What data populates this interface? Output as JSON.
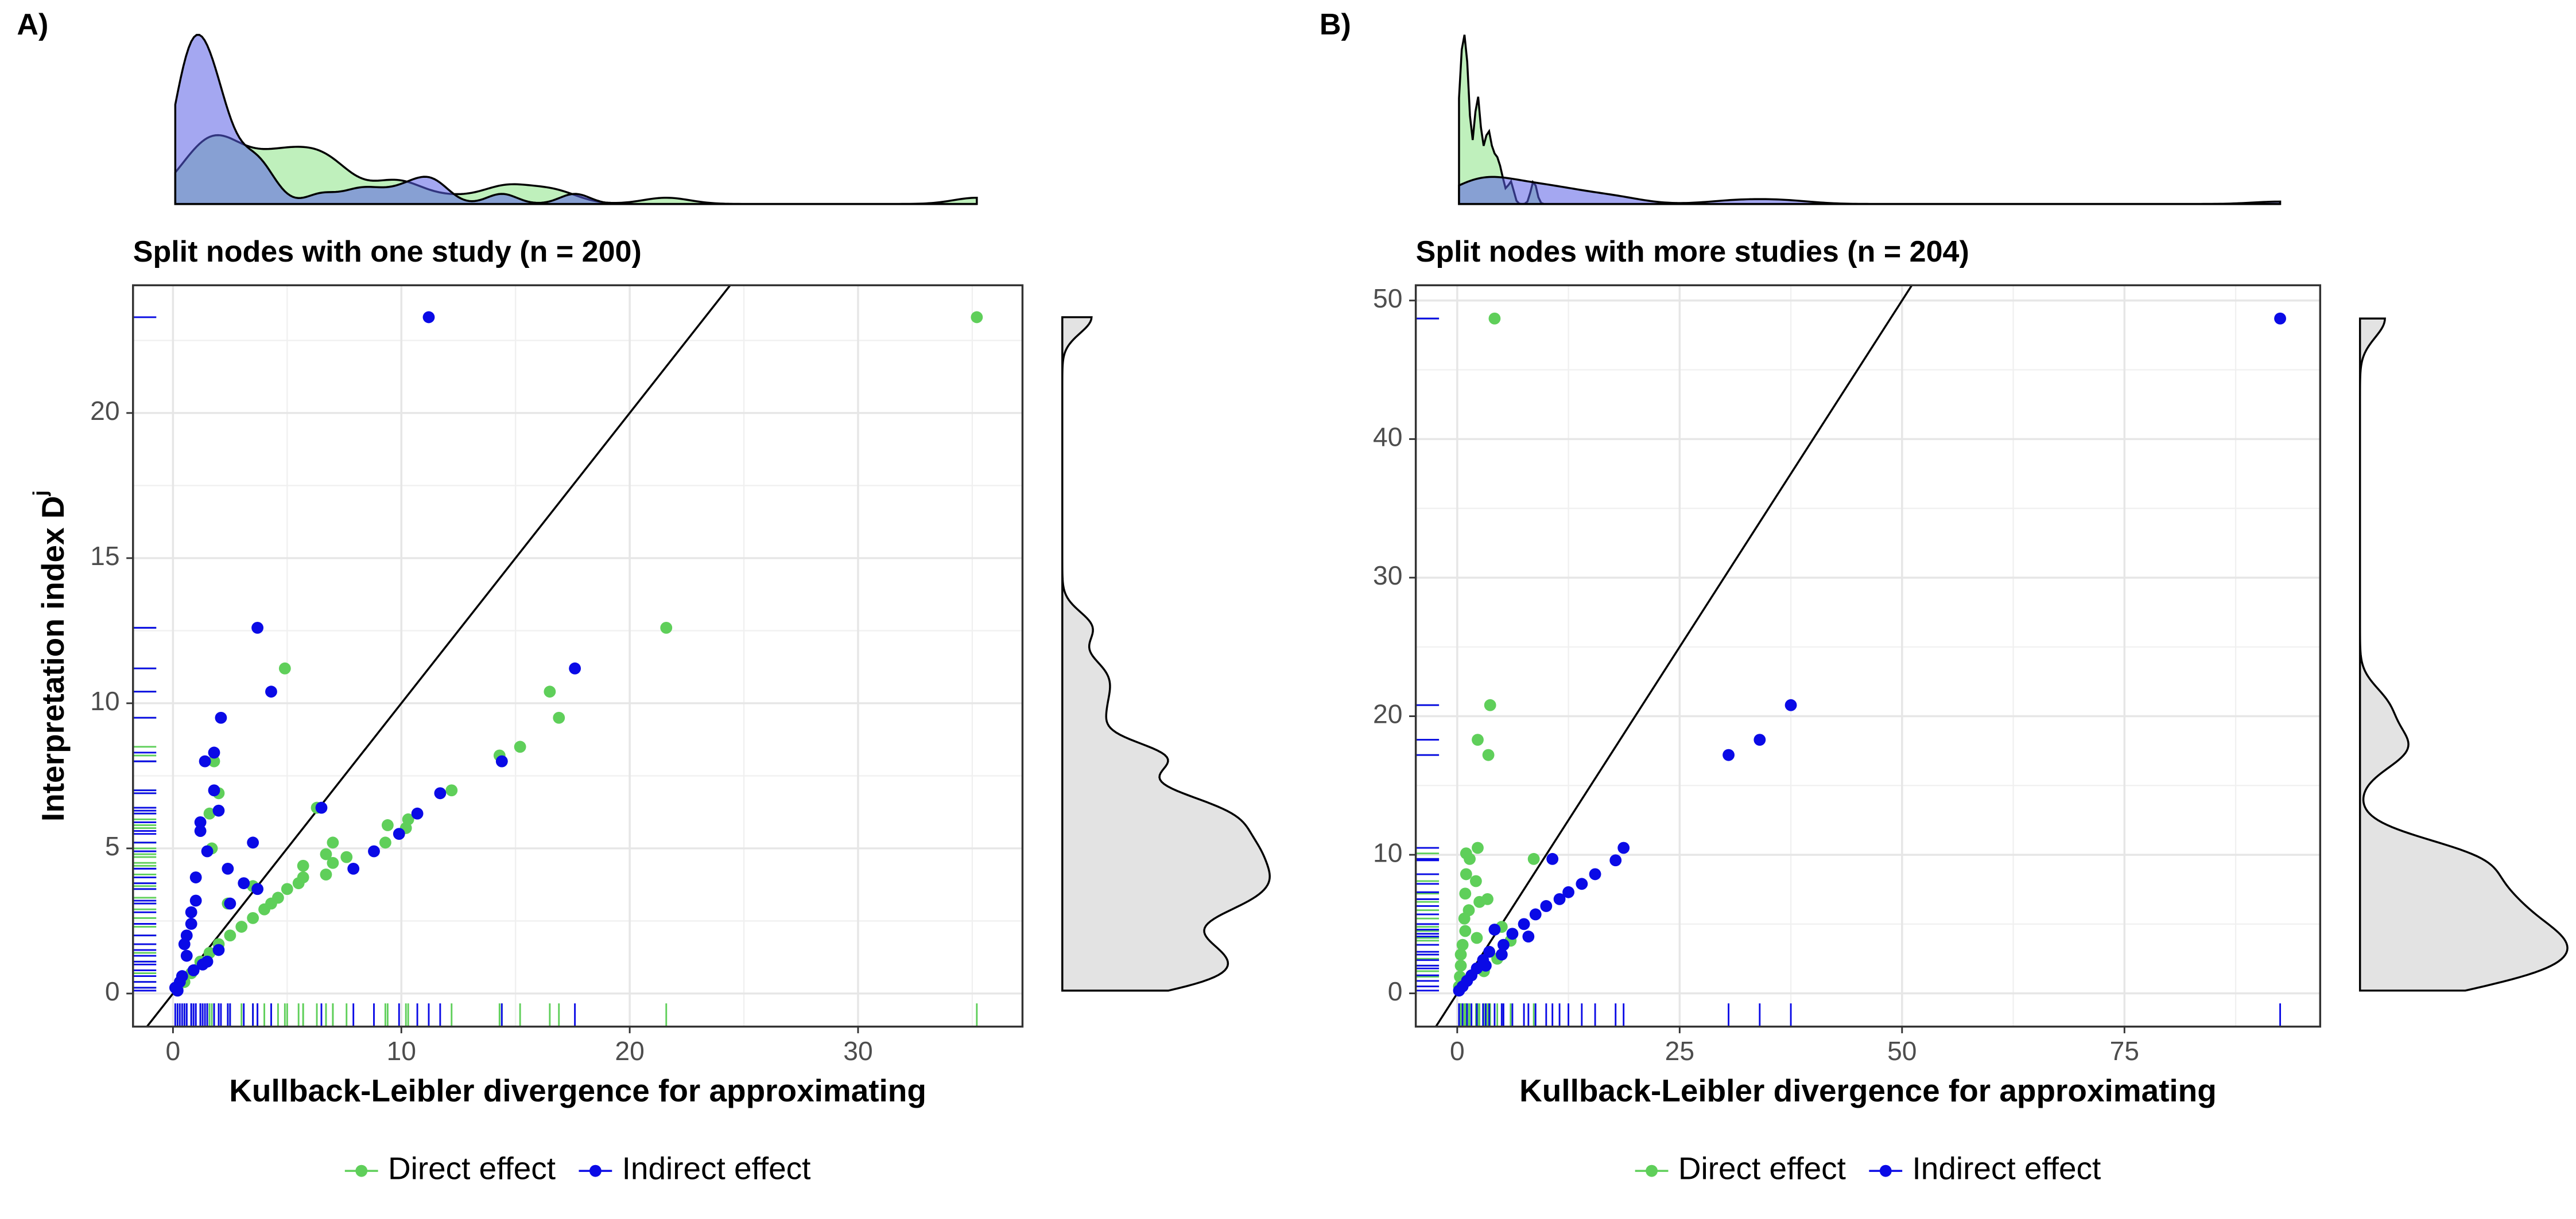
{
  "chart_data": [
    {
      "type": "scatter",
      "panel_label": "A)",
      "title": "Split nodes with one study (n = 200)",
      "x_label": "Kullback-Leibler divergence for approximating",
      "y_label": "Interpretation index D",
      "y_label_sup": "j",
      "xlim": [
        -1.75,
        37.2
      ],
      "ylim": [
        -1.14,
        24.4
      ],
      "xticks": [
        0,
        10,
        20,
        30
      ],
      "yticks": [
        0,
        5,
        10,
        15,
        20
      ],
      "grid": true,
      "legend": "bottom",
      "identity_line": true,
      "marginal_density": true,
      "rug": true,
      "series": [
        {
          "name": "Direct effect",
          "color": "#5fcf5a",
          "x": [
            35.2,
            21.6,
            4.9,
            16.5,
            16.9,
            15.2,
            14.3,
            14.4,
            12.2,
            6.3,
            10.3,
            10.2,
            9.4,
            9.3,
            7.0,
            7.6,
            7.0,
            6.7,
            5.7,
            5.5,
            5.0,
            4.6,
            4.3,
            4.0,
            3.5,
            3.0,
            2.5,
            2.0,
            1.6,
            1.2,
            0.8,
            0.5,
            0.2,
            1.8,
            1.6,
            2.0,
            1.7,
            2.4,
            3.5,
            5.7,
            6.7
          ],
          "y": [
            23.3,
            12.6,
            11.2,
            10.4,
            9.5,
            8.5,
            8.2,
            8.0,
            7.0,
            6.4,
            6.0,
            5.7,
            5.8,
            5.2,
            5.2,
            4.7,
            4.5,
            4.1,
            4.0,
            3.8,
            3.6,
            3.3,
            3.1,
            2.9,
            2.6,
            2.3,
            2.0,
            1.7,
            1.4,
            1.1,
            0.7,
            0.4,
            0.2,
            8.0,
            6.2,
            6.9,
            5.0,
            3.1,
            3.7,
            4.4,
            4.8
          ]
        },
        {
          "name": "Indirect effect",
          "color": "#0a0ae6",
          "x": [
            11.2,
            3.7,
            17.6,
            4.3,
            2.1,
            1.8,
            1.4,
            14.4,
            1.8,
            2.0,
            6.5,
            11.7,
            10.7,
            9.9,
            8.8,
            7.9,
            1.2,
            1.2,
            3.5,
            2.4,
            1.5,
            1.0,
            3.1,
            3.7,
            2.5,
            1.0,
            0.8,
            0.8,
            0.6,
            0.5,
            0.6,
            1.3,
            0.9,
            0.4,
            0.3,
            0.1,
            2.0,
            1.5,
            0.2
          ],
          "y": [
            23.3,
            12.6,
            11.2,
            10.4,
            9.5,
            8.3,
            8.0,
            8.0,
            7.0,
            6.3,
            6.4,
            6.9,
            6.2,
            5.5,
            4.9,
            4.3,
            5.9,
            5.6,
            5.2,
            4.3,
            4.9,
            4.0,
            3.8,
            3.6,
            3.1,
            3.2,
            2.8,
            2.4,
            2.0,
            1.7,
            1.3,
            1.0,
            0.8,
            0.6,
            0.4,
            0.2,
            1.5,
            1.1,
            0.1
          ]
        }
      ]
    },
    {
      "type": "scatter",
      "panel_label": "B)",
      "title": "Split nodes with more studies (n = 204)",
      "x_label": "Kullback-Leibler divergence for approximating",
      "xlim": [
        -4.66,
        97.0
      ],
      "ylim": [
        -2.4,
        51.1
      ],
      "xticks": [
        0,
        25,
        50,
        75
      ],
      "yticks": [
        0,
        10,
        20,
        30,
        40,
        50
      ],
      "grid": true,
      "legend": "bottom",
      "identity_line": true,
      "marginal_density": true,
      "rug": true,
      "series": [
        {
          "name": "Direct effect",
          "color": "#5fcf5a",
          "x": [
            4.2,
            3.7,
            2.3,
            3.5,
            2.3,
            1.0,
            1.4,
            8.6,
            1.0,
            2.1,
            0.9,
            2.5,
            3.4,
            1.3,
            0.8,
            0.9,
            2.2,
            0.6,
            0.4,
            0.4,
            0.3,
            0.2,
            5.0,
            6.0,
            4.5,
            3.0
          ],
          "y": [
            48.7,
            20.8,
            18.3,
            17.2,
            10.5,
            10.1,
            9.7,
            9.7,
            8.6,
            8.1,
            7.2,
            6.6,
            6.8,
            6.0,
            5.4,
            4.5,
            4.0,
            3.5,
            2.8,
            2.0,
            1.2,
            0.5,
            4.8,
            3.8,
            2.5,
            1.6
          ]
        },
        {
          "name": "Indirect effect",
          "color": "#0a0ae6",
          "x": [
            92.5,
            37.5,
            34.0,
            30.5,
            18.7,
            10.7,
            17.8,
            15.5,
            14.0,
            12.5,
            11.5,
            10.0,
            8.8,
            7.5,
            6.2,
            5.2,
            4.2,
            3.6,
            2.9,
            2.2,
            1.6,
            1.1,
            0.6,
            0.2,
            5.0,
            8.0,
            3.2
          ],
          "y": [
            48.7,
            20.8,
            18.3,
            17.2,
            10.5,
            9.7,
            9.6,
            8.6,
            7.9,
            7.3,
            6.8,
            6.3,
            5.7,
            5.0,
            4.3,
            3.5,
            4.6,
            3.0,
            2.4,
            1.8,
            1.3,
            0.9,
            0.5,
            0.2,
            2.8,
            4.1,
            2.0
          ]
        }
      ]
    }
  ]
}
